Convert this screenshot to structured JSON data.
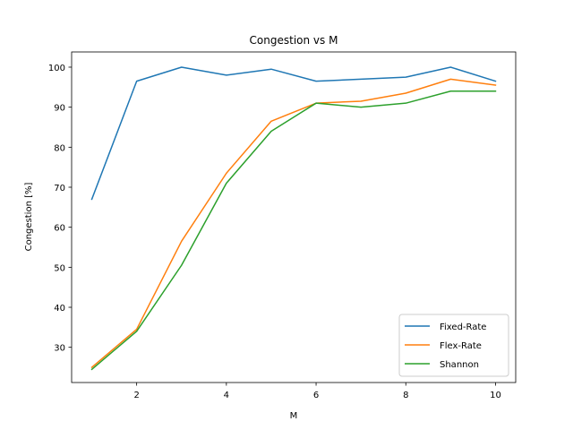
{
  "chart_data": {
    "type": "line",
    "title": "Congestion vs M",
    "xlabel": "M",
    "ylabel": "Congestion [%]",
    "x": [
      1,
      2,
      3,
      4,
      5,
      6,
      7,
      8,
      9,
      10
    ],
    "xlim": [
      0.55,
      10.45
    ],
    "ylim": [
      21.2,
      103.8
    ],
    "xticks": [
      2,
      4,
      6,
      8,
      10
    ],
    "yticks": [
      30,
      40,
      50,
      60,
      70,
      80,
      90,
      100
    ],
    "grid": false,
    "legend_position": "lower-right",
    "series": [
      {
        "name": "Fixed-Rate",
        "color": "#1f77b4",
        "values": [
          67,
          96.5,
          100,
          98,
          99.5,
          96.5,
          97,
          97.5,
          100,
          96.5
        ]
      },
      {
        "name": "Flex-Rate",
        "color": "#ff7f0e",
        "values": [
          25,
          34.5,
          56.5,
          73.5,
          86.5,
          91,
          91.5,
          93.5,
          97,
          95.5
        ]
      },
      {
        "name": "Shannon",
        "color": "#2ca02c",
        "values": [
          24.5,
          34,
          50.5,
          71,
          84,
          91,
          90,
          91,
          94,
          94
        ]
      }
    ]
  }
}
